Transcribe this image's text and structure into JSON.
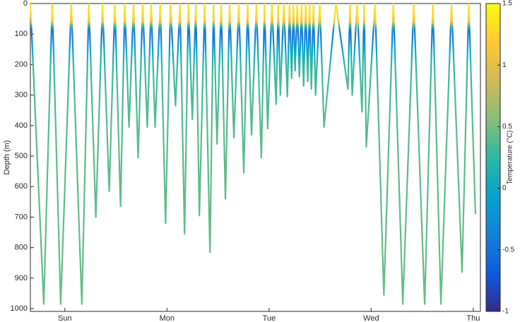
{
  "chart_data": {
    "type": "dives",
    "ylabel": "Depth (m)",
    "ylim": [
      0,
      1009
    ],
    "yticks": [
      0,
      100,
      200,
      300,
      400,
      500,
      600,
      700,
      800,
      900,
      1000
    ],
    "y_reversed": true,
    "xlim": [
      0.662,
      5.07
    ],
    "xticks": [
      {
        "value": 1,
        "label": "Sun"
      },
      {
        "value": 2,
        "label": "Mon"
      },
      {
        "value": 3,
        "label": "Tue"
      },
      {
        "value": 4,
        "label": "Wed"
      },
      {
        "value": 5,
        "label": "Thu"
      }
    ],
    "dives": {
      "time": [
        0.793,
        0.959,
        1.166,
        1.303,
        1.434,
        1.545,
        1.628,
        1.717,
        1.807,
        1.883,
        1.986,
        2.083,
        2.172,
        2.248,
        2.317,
        2.421,
        2.49,
        2.572,
        2.655,
        2.752,
        2.828,
        2.924,
        2.986,
        3.069,
        3.11,
        3.179,
        3.221,
        3.255,
        3.297,
        3.338,
        3.379,
        3.414,
        3.455,
        3.538,
        3.772,
        3.814,
        3.91,
        3.952,
        4.124,
        4.31,
        4.524,
        4.683,
        4.89,
        5.021
      ],
      "max_depth": [
        985,
        985,
        985,
        700,
        615,
        665,
        405,
        505,
        405,
        405,
        720,
        335,
        755,
        380,
        695,
        815,
        460,
        640,
        440,
        555,
        430,
        505,
        410,
        330,
        300,
        305,
        245,
        220,
        240,
        270,
        255,
        280,
        300,
        405,
        280,
        300,
        355,
        470,
        955,
        985,
        985,
        985,
        880,
        690
      ]
    },
    "temperature_profile": {
      "depth": [
        0,
        40,
        60,
        75,
        90,
        120,
        150,
        180,
        220,
        400,
        1000
      ],
      "temperature": [
        1.35,
        1.3,
        1.1,
        0.2,
        -0.45,
        -0.35,
        -0.05,
        0.15,
        0.3,
        0.4,
        0.45
      ]
    },
    "colorbar": {
      "label": "Temperature (°C)",
      "clim": [
        -1,
        1.5
      ],
      "ticks": [
        -1,
        -0.5,
        0,
        0.5,
        1,
        1.5
      ],
      "colormap": [
        "#352a87",
        "#0f5cdd",
        "#1481d6",
        "#06a4ca",
        "#2eb7a4",
        "#87bf77",
        "#d1bb59",
        "#fec832",
        "#f9fb0e"
      ]
    }
  }
}
